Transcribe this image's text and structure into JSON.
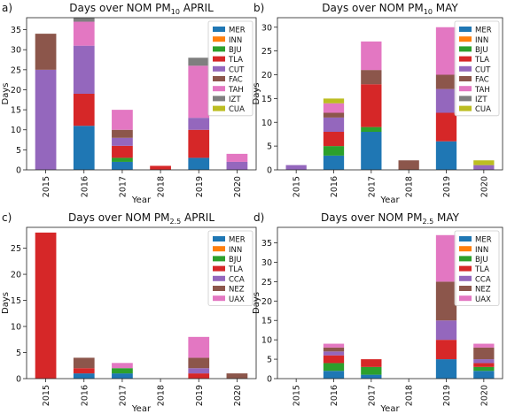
{
  "chart_data": [
    {
      "type": "bar",
      "stacked": true,
      "panel_label": "a)",
      "title": {
        "pre": "Days over NOM PM",
        "sub": "10",
        "post": " APRIL"
      },
      "xlabel": "Year",
      "ylabel": "Days",
      "categories": [
        "2015",
        "2016",
        "2017",
        "2018",
        "2019",
        "2020"
      ],
      "ylim": [
        0,
        38
      ],
      "yticks": [
        0,
        5,
        10,
        15,
        20,
        25,
        30,
        35
      ],
      "legend_position": "top-right",
      "series": [
        {
          "name": "MER",
          "color": "#1f77b4",
          "values": [
            0,
            11,
            2,
            0,
            3,
            0
          ]
        },
        {
          "name": "INN",
          "color": "#ff7f0e",
          "values": [
            0,
            0,
            0,
            0,
            0,
            0
          ]
        },
        {
          "name": "BJU",
          "color": "#2ca02c",
          "values": [
            0,
            0,
            1,
            0,
            0,
            0
          ]
        },
        {
          "name": "TLA",
          "color": "#d62728",
          "values": [
            0,
            8,
            3,
            1,
            7,
            0
          ]
        },
        {
          "name": "CUT",
          "color": "#9467bd",
          "values": [
            25,
            12,
            2,
            0,
            3,
            2
          ]
        },
        {
          "name": "FAC",
          "color": "#8c564b",
          "values": [
            9,
            0,
            2,
            0,
            0,
            0
          ]
        },
        {
          "name": "TAH",
          "color": "#e377c2",
          "values": [
            0,
            6,
            5,
            0,
            13,
            2
          ]
        },
        {
          "name": "IZT",
          "color": "#7f7f7f",
          "values": [
            0,
            1,
            0,
            0,
            2,
            0
          ]
        },
        {
          "name": "CUA",
          "color": "#bcbd22",
          "values": [
            0,
            0,
            0,
            0,
            0,
            0
          ]
        }
      ]
    },
    {
      "type": "bar",
      "stacked": true,
      "panel_label": "b)",
      "title": {
        "pre": "Days over NOM PM",
        "sub": "10",
        "post": " MAY"
      },
      "xlabel": "Year",
      "ylabel": "Days",
      "categories": [
        "2015",
        "2016",
        "2017",
        "2018",
        "2019",
        "2020"
      ],
      "ylim": [
        0,
        32
      ],
      "yticks": [
        0,
        5,
        10,
        15,
        20,
        25,
        30
      ],
      "legend_position": "top-right",
      "series": [
        {
          "name": "MER",
          "color": "#1f77b4",
          "values": [
            0,
            3,
            8,
            0,
            6,
            0
          ]
        },
        {
          "name": "INN",
          "color": "#ff7f0e",
          "values": [
            0,
            0,
            0,
            0,
            0,
            0
          ]
        },
        {
          "name": "BJU",
          "color": "#2ca02c",
          "values": [
            0,
            2,
            1,
            0,
            0,
            0
          ]
        },
        {
          "name": "TLA",
          "color": "#d62728",
          "values": [
            0,
            3,
            9,
            0,
            6,
            0
          ]
        },
        {
          "name": "CUT",
          "color": "#9467bd",
          "values": [
            1,
            3,
            0,
            0,
            5,
            1
          ]
        },
        {
          "name": "FAC",
          "color": "#8c564b",
          "values": [
            0,
            1,
            3,
            2,
            3,
            0
          ]
        },
        {
          "name": "TAH",
          "color": "#e377c2",
          "values": [
            0,
            2,
            6,
            0,
            10,
            0
          ]
        },
        {
          "name": "IZT",
          "color": "#7f7f7f",
          "values": [
            0,
            0,
            0,
            0,
            0,
            0
          ]
        },
        {
          "name": "CUA",
          "color": "#bcbd22",
          "values": [
            0,
            1,
            0,
            0,
            0,
            1
          ]
        }
      ]
    },
    {
      "type": "bar",
      "stacked": true,
      "panel_label": "c)",
      "title": {
        "pre": "Days over NOM PM",
        "sub": "2.5",
        "post": " APRIL"
      },
      "xlabel": "Year",
      "ylabel": "Days",
      "categories": [
        "2015",
        "2016",
        "2017",
        "2018",
        "2019",
        "2020"
      ],
      "ylim": [
        0,
        29
      ],
      "yticks": [
        0,
        5,
        10,
        15,
        20,
        25
      ],
      "legend_position": "top-right",
      "series": [
        {
          "name": "MER",
          "color": "#1f77b4",
          "values": [
            0,
            1,
            1,
            0,
            0,
            0
          ]
        },
        {
          "name": "INN",
          "color": "#ff7f0e",
          "values": [
            0,
            0,
            0,
            0,
            0,
            0
          ]
        },
        {
          "name": "BJU",
          "color": "#2ca02c",
          "values": [
            0,
            0,
            1,
            0,
            0,
            0
          ]
        },
        {
          "name": "TLA",
          "color": "#d62728",
          "values": [
            28,
            1,
            0,
            0,
            1,
            0
          ]
        },
        {
          "name": "CCA",
          "color": "#9467bd",
          "values": [
            0,
            0,
            0,
            0,
            1,
            0
          ]
        },
        {
          "name": "NEZ",
          "color": "#8c564b",
          "values": [
            0,
            2,
            0,
            0,
            2,
            1
          ]
        },
        {
          "name": "UAX",
          "color": "#e377c2",
          "values": [
            0,
            0,
            1,
            0,
            4,
            0
          ]
        }
      ]
    },
    {
      "type": "bar",
      "stacked": true,
      "panel_label": "d)",
      "title": {
        "pre": "Days over NOM PM",
        "sub": "2.5",
        "post": " MAY"
      },
      "xlabel": "Year",
      "ylabel": "Days",
      "categories": [
        "2015",
        "2016",
        "2017",
        "2018",
        "2019",
        "2020"
      ],
      "ylim": [
        0,
        39
      ],
      "yticks": [
        0,
        5,
        10,
        15,
        20,
        25,
        30,
        35
      ],
      "legend_position": "top-right",
      "series": [
        {
          "name": "MER",
          "color": "#1f77b4",
          "values": [
            0,
            2,
            1,
            0,
            5,
            2
          ]
        },
        {
          "name": "INN",
          "color": "#ff7f0e",
          "values": [
            0,
            0,
            0,
            0,
            0,
            0
          ]
        },
        {
          "name": "BJU",
          "color": "#2ca02c",
          "values": [
            0,
            2,
            2,
            0,
            0,
            1
          ]
        },
        {
          "name": "TLA",
          "color": "#d62728",
          "values": [
            0,
            2,
            2,
            0,
            5,
            1
          ]
        },
        {
          "name": "CCA",
          "color": "#9467bd",
          "values": [
            0,
            1,
            0,
            0,
            5,
            1
          ]
        },
        {
          "name": "NEZ",
          "color": "#8c564b",
          "values": [
            0,
            1,
            0,
            0,
            10,
            3
          ]
        },
        {
          "name": "UAX",
          "color": "#e377c2",
          "values": [
            0,
            1,
            0,
            0,
            12,
            1
          ]
        }
      ]
    }
  ]
}
